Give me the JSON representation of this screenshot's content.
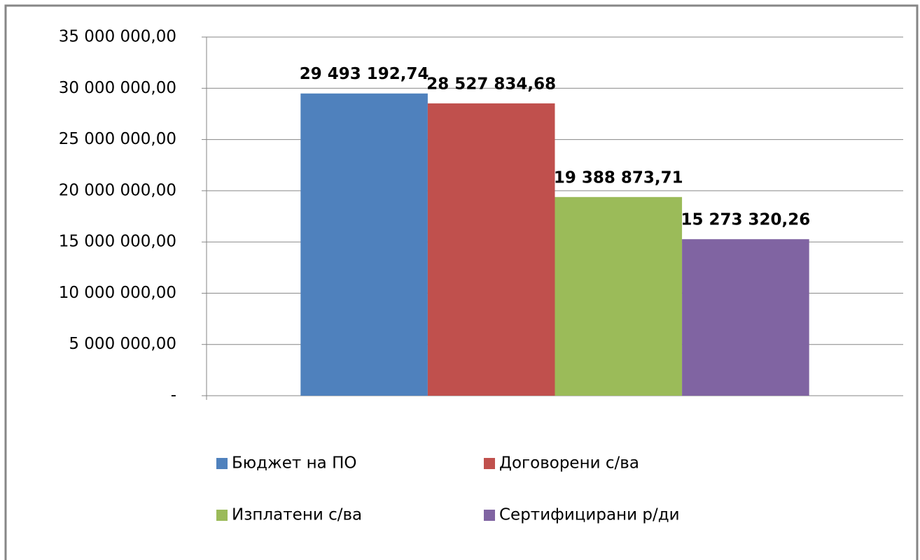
{
  "chart_data": {
    "type": "bar",
    "categories": [
      null
    ],
    "series": [
      {
        "name": "Бюджет на ПО",
        "color": "#4f81bd",
        "values": [
          29493192.74
        ],
        "value_labels": [
          "29 493 192,74"
        ]
      },
      {
        "name": "Договорени с/ва",
        "color": "#c0504d",
        "values": [
          28527834.68
        ],
        "value_labels": [
          "28 527 834,68"
        ]
      },
      {
        "name": "Изплатени с/ва",
        "color": "#9bbb59",
        "values": [
          19388873.71
        ],
        "value_labels": [
          "19 388 873,71"
        ]
      },
      {
        "name": "Сертифицирани р/ди",
        "color": "#8064a2",
        "values": [
          15273320.26
        ],
        "value_labels": [
          "15 273 320,26"
        ]
      }
    ],
    "ylim": [
      0,
      35000000
    ],
    "yticks": [
      {
        "value": 0,
        "label": "-"
      },
      {
        "value": 5000000,
        "label": "5 000 000,00"
      },
      {
        "value": 10000000,
        "label": "10 000 000,00"
      },
      {
        "value": 15000000,
        "label": "15 000 000,00"
      },
      {
        "value": 20000000,
        "label": "20 000 000,00"
      },
      {
        "value": 25000000,
        "label": "25 000 000,00"
      },
      {
        "value": 30000000,
        "label": "30 000 000,00"
      },
      {
        "value": 35000000,
        "label": "35 000 000,00"
      }
    ],
    "grid": true,
    "legend": "bottom"
  }
}
